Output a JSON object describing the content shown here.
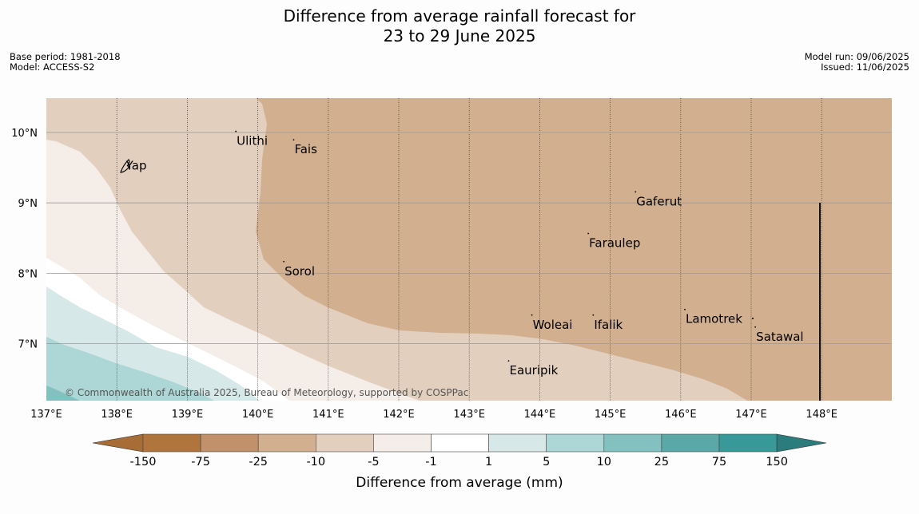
{
  "header": {
    "title_line1": "Difference from average rainfall forecast for",
    "title_line2": "23 to 29 June 2025"
  },
  "meta_left": {
    "base_period": "Base period: 1981-2018",
    "model": "Model: ACCESS-S2"
  },
  "meta_right": {
    "model_run": "Model run: 09/06/2025",
    "issued": "Issued: 11/06/2025"
  },
  "map": {
    "lon_range": [
      137,
      149
    ],
    "lat_range": [
      6.2,
      10.5
    ],
    "lon_ticks": [
      "137°E",
      "138°E",
      "139°E",
      "140°E",
      "141°E",
      "142°E",
      "143°E",
      "144°E",
      "145°E",
      "146°E",
      "147°E",
      "148°E"
    ],
    "lat_ticks": [
      "10°N",
      "9°N",
      "8°N",
      "7°N"
    ],
    "places": [
      {
        "name": "Ulithi",
        "lon": 139.7,
        "lat": 9.88
      },
      {
        "name": "Fais",
        "lon": 140.52,
        "lat": 9.76
      },
      {
        "name": "Yap",
        "lon": 138.13,
        "lat": 9.53
      },
      {
        "name": "Gaferut",
        "lon": 145.37,
        "lat": 9.02
      },
      {
        "name": "Faraulep",
        "lon": 144.7,
        "lat": 8.43
      },
      {
        "name": "Sorol",
        "lon": 140.38,
        "lat": 8.03
      },
      {
        "name": "Lamotrek",
        "lon": 146.07,
        "lat": 7.35
      },
      {
        "name": "Woleai",
        "lon": 143.9,
        "lat": 7.27
      },
      {
        "name": "Ifalik",
        "lon": 144.77,
        "lat": 7.27
      },
      {
        "name": "Satawal",
        "lon": 147.07,
        "lat": 7.1
      },
      {
        "name": "Eauripik",
        "lon": 143.57,
        "lat": 6.62
      }
    ],
    "copyright": "© Commonwealth of Australia 2025, Bureau of Meteorology, supported by COSPPac"
  },
  "colorbar": {
    "title": "Difference from average (mm)",
    "labels": [
      "-150",
      "-75",
      "-25",
      "-10",
      "-5",
      "-1",
      "1",
      "5",
      "10",
      "25",
      "75",
      "150"
    ],
    "colors": [
      "#a86d37",
      "#b0753c",
      "#c0916a",
      "#d2b08f",
      "#e3cfbe",
      "#f4ede8",
      "#ffffff",
      "#d6e9e8",
      "#add6d6",
      "#82c1c0",
      "#5aa9a8",
      "#379a99",
      "#2a7d7c"
    ]
  }
}
